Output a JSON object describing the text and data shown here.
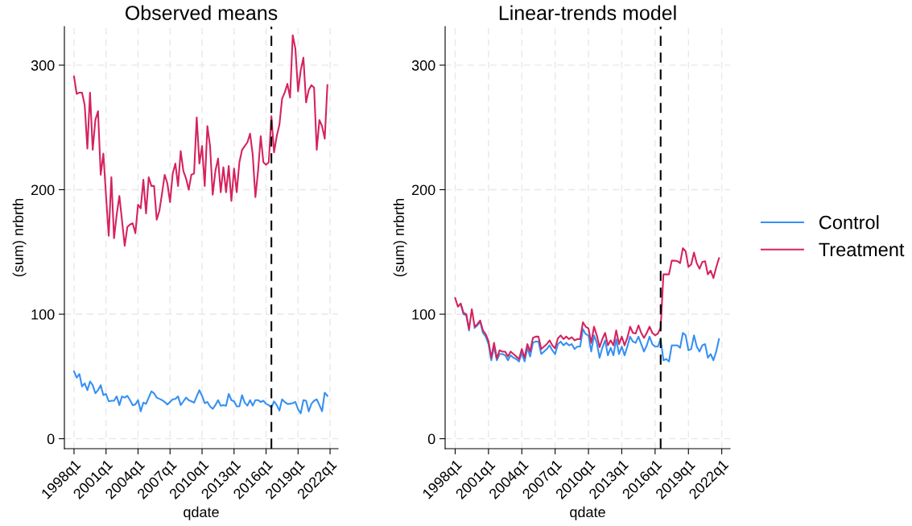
{
  "chart_data": [
    {
      "type": "line",
      "title": "Observed means",
      "xlabel": "qdate",
      "ylabel": "(sum) nrbrth",
      "x": [
        "1998-01",
        "1998-04",
        "1998-07",
        "1998-10",
        "1999-01",
        "1999-04",
        "1999-07",
        "1999-10",
        "2000-01",
        "2000-04",
        "2000-07",
        "2000-10",
        "2001-01",
        "2001-04",
        "2001-07",
        "2001-10",
        "2002-01",
        "2002-04",
        "2002-07",
        "2002-10",
        "2003-01",
        "2003-04",
        "2003-07",
        "2003-10",
        "2004-01",
        "2004-04",
        "2004-07",
        "2004-10",
        "2005-01",
        "2005-04",
        "2005-07",
        "2005-10",
        "2006-01",
        "2006-04",
        "2006-07",
        "2006-10",
        "2007-01",
        "2007-04",
        "2007-07",
        "2007-10",
        "2008-01",
        "2008-04",
        "2008-07",
        "2008-10",
        "2009-01",
        "2009-04",
        "2009-07",
        "2009-10",
        "2010-01",
        "2010-04",
        "2010-07",
        "2010-10",
        "2011-01",
        "2011-04",
        "2011-07",
        "2011-10",
        "2012-01",
        "2012-04",
        "2012-07",
        "2012-10",
        "2013-01",
        "2013-04",
        "2013-07",
        "2013-10",
        "2014-01",
        "2014-04",
        "2014-07",
        "2014-10",
        "2015-01",
        "2015-04",
        "2015-07",
        "2015-10",
        "2016-01",
        "2016-04",
        "2016-07",
        "2016-10",
        "2017-01",
        "2017-04",
        "2017-07",
        "2017-10",
        "2018-01",
        "2018-04",
        "2018-07",
        "2018-10",
        "2019-01",
        "2019-04",
        "2019-07",
        "2019-10",
        "2020-01",
        "2020-04",
        "2020-07",
        "2020-10",
        "2021-01",
        "2021-04",
        "2021-07",
        "2021-10"
      ],
      "series": [
        {
          "color": "#3590f3",
          "values": [
            54,
            49,
            52,
            42,
            44.5,
            39,
            46,
            43,
            36.5,
            39,
            43,
            35,
            36,
            30,
            30.5,
            30.5,
            34,
            27,
            34,
            33,
            34.4,
            31,
            27,
            27.5,
            31,
            22,
            29,
            28,
            33,
            38,
            36.5,
            33,
            32,
            31,
            29.5,
            27.5,
            29.5,
            31.6,
            32,
            34,
            27,
            30,
            33,
            31,
            30,
            29,
            34,
            39,
            34.4,
            28.6,
            29.5,
            26,
            24,
            27,
            31,
            26.5,
            27,
            26.5,
            36,
            31,
            30,
            26,
            26,
            35,
            29,
            26.5,
            31,
            26.5,
            31,
            31,
            29.5,
            30.5,
            28,
            27,
            25,
            30,
            27,
            22.6,
            31.6,
            29.5,
            28,
            28,
            28.6,
            29.5,
            23.7,
            20.4,
            31,
            30.5,
            22,
            28,
            30.5,
            31.6,
            27,
            22,
            37,
            34.4
          ]
        },
        {
          "color": "#d5235d",
          "values": [
            291,
            277,
            278,
            278,
            268,
            233,
            278,
            232,
            256,
            263,
            212,
            229,
            195,
            163,
            210,
            161,
            180,
            195,
            175,
            155,
            170,
            172,
            173,
            165,
            188,
            185,
            208,
            181,
            210,
            203,
            203,
            176,
            183,
            197,
            212,
            205,
            190,
            213,
            221,
            203,
            231,
            215,
            209,
            200,
            212,
            213,
            258,
            221,
            235,
            203,
            251,
            235,
            196,
            215,
            225,
            198,
            218,
            198,
            219,
            191,
            217,
            198,
            222,
            232,
            235,
            238,
            245,
            228,
            194,
            215,
            243,
            222,
            220,
            222,
            259,
            230,
            243,
            252,
            273,
            278,
            285,
            274,
            324,
            313,
            279,
            296,
            306,
            270,
            280,
            284,
            282,
            232,
            256,
            251,
            241,
            284
          ]
        }
      ],
      "xlim": [
        "1997-02-06",
        "2022-10-01"
      ],
      "ylim": [
        -8,
        331
      ],
      "yticks": [
        0,
        100,
        200,
        300
      ],
      "xticks": [
        {
          "value": "1998-01",
          "label": "1998q1"
        },
        {
          "value": "2001-01",
          "label": "2001q1"
        },
        {
          "value": "2004-01",
          "label": "2004q1"
        },
        {
          "value": "2007-01",
          "label": "2007q1"
        },
        {
          "value": "2010-01",
          "label": "2010q1"
        },
        {
          "value": "2013-01",
          "label": "2013q1"
        },
        {
          "value": "2016-01",
          "label": "2016q1"
        },
        {
          "value": "2019-01",
          "label": "2019q1"
        },
        {
          "value": "2022-01",
          "label": "2022q1"
        }
      ],
      "ref_lines": [
        {
          "axis": "x",
          "value": "2016-07",
          "color": "#000000",
          "line_style": "dashed"
        }
      ],
      "grid": true,
      "line_style": "solid",
      "marker": "none"
    },
    {
      "type": "line",
      "title": "Linear-trends model",
      "xlabel": "qdate",
      "ylabel": "(sum) nrbrth",
      "x": [
        "1998-01",
        "1998-04",
        "1998-07",
        "1998-10",
        "1999-01",
        "1999-04",
        "1999-07",
        "1999-10",
        "2000-01",
        "2000-04",
        "2000-07",
        "2000-10",
        "2001-01",
        "2001-04",
        "2001-07",
        "2001-10",
        "2002-01",
        "2002-04",
        "2002-07",
        "2002-10",
        "2003-01",
        "2003-04",
        "2003-07",
        "2003-10",
        "2004-01",
        "2004-04",
        "2004-07",
        "2004-10",
        "2005-01",
        "2005-04",
        "2005-07",
        "2005-10",
        "2006-01",
        "2006-04",
        "2006-07",
        "2006-10",
        "2007-01",
        "2007-04",
        "2007-07",
        "2007-10",
        "2008-01",
        "2008-04",
        "2008-07",
        "2008-10",
        "2009-01",
        "2009-04",
        "2009-07",
        "2009-10",
        "2010-01",
        "2010-04",
        "2010-07",
        "2010-10",
        "2011-01",
        "2011-04",
        "2011-07",
        "2011-10",
        "2012-01",
        "2012-04",
        "2012-07",
        "2012-10",
        "2013-01",
        "2013-04",
        "2013-07",
        "2013-10",
        "2014-01",
        "2014-04",
        "2014-07",
        "2014-10",
        "2015-01",
        "2015-04",
        "2015-07",
        "2015-10",
        "2016-01",
        "2016-04",
        "2016-07",
        "2016-10",
        "2017-01",
        "2017-04",
        "2017-07",
        "2017-10",
        "2018-01",
        "2018-04",
        "2018-07",
        "2018-10",
        "2019-01",
        "2019-04",
        "2019-07",
        "2019-10",
        "2020-01",
        "2020-04",
        "2020-07",
        "2020-10",
        "2021-01",
        "2021-04",
        "2021-07",
        "2021-10"
      ],
      "series": [
        {
          "name": "Control",
          "color": "#3590f3",
          "values": [
            null,
            null,
            108,
            100,
            99,
            87,
            null,
            89,
            91,
            94,
            85,
            82,
            76,
            63,
            74,
            63,
            68,
            68,
            67,
            63,
            67,
            65,
            64,
            62,
            69,
            62,
            73,
            66,
            77,
            78,
            78,
            68,
            70,
            72,
            75,
            71,
            68,
            76,
            78,
            75,
            77,
            75,
            76,
            72,
            74,
            74,
            88,
            84,
            83,
            70,
            83,
            77,
            65,
            73,
            79,
            67,
            73,
            67,
            80,
            68,
            74,
            67,
            74,
            82,
            78,
            77,
            82,
            76,
            70,
            75,
            82,
            76,
            74,
            74,
            80,
            63,
            64,
            62,
            75,
            75,
            75,
            73,
            85,
            83,
            71,
            72,
            83,
            74,
            70,
            75,
            76,
            65,
            68,
            63,
            70,
            80
          ]
        },
        {
          "name": "Treatment",
          "color": "#d5235d",
          "values": [
            113,
            106,
            108.6,
            101,
            100,
            88,
            104,
            90,
            92,
            95,
            87,
            84,
            78.5,
            65,
            77,
            64.5,
            71,
            70,
            70,
            66,
            70,
            68,
            66,
            64,
            72,
            65,
            76,
            70,
            81,
            82,
            82,
            72,
            74,
            76,
            79,
            75,
            72.5,
            80.6,
            83,
            80,
            82,
            80,
            81.5,
            79,
            80,
            80,
            93.5,
            90,
            88.6,
            77,
            90,
            83,
            73.5,
            80,
            85,
            75,
            79,
            75,
            87,
            76,
            82,
            75,
            81,
            90,
            85,
            84.5,
            91,
            85,
            81,
            85,
            90,
            85,
            83,
            84.5,
            89,
            132,
            132,
            132,
            143,
            143,
            142.6,
            141,
            153,
            150.5,
            138,
            140,
            149.5,
            141,
            136.5,
            142,
            142.6,
            132,
            135,
            129,
            137.6,
            145
          ]
        }
      ],
      "xlim": [
        "1997-02-06",
        "2022-10-01"
      ],
      "ylim": [
        -8,
        331
      ],
      "yticks": [
        0,
        100,
        200,
        300
      ],
      "xticks": [
        {
          "value": "1998-01",
          "label": "1998q1"
        },
        {
          "value": "2001-01",
          "label": "2001q1"
        },
        {
          "value": "2004-01",
          "label": "2004q1"
        },
        {
          "value": "2007-01",
          "label": "2007q1"
        },
        {
          "value": "2010-01",
          "label": "2010q1"
        },
        {
          "value": "2013-01",
          "label": "2013q1"
        },
        {
          "value": "2016-01",
          "label": "2016q1"
        },
        {
          "value": "2019-01",
          "label": "2019q1"
        },
        {
          "value": "2022-01",
          "label": "2022q1"
        }
      ],
      "ref_lines": [
        {
          "axis": "x",
          "value": "2016-07",
          "color": "#000000",
          "line_style": "dashed"
        }
      ],
      "grid": true,
      "legend": "right",
      "line_style": "solid",
      "marker": "none"
    }
  ]
}
